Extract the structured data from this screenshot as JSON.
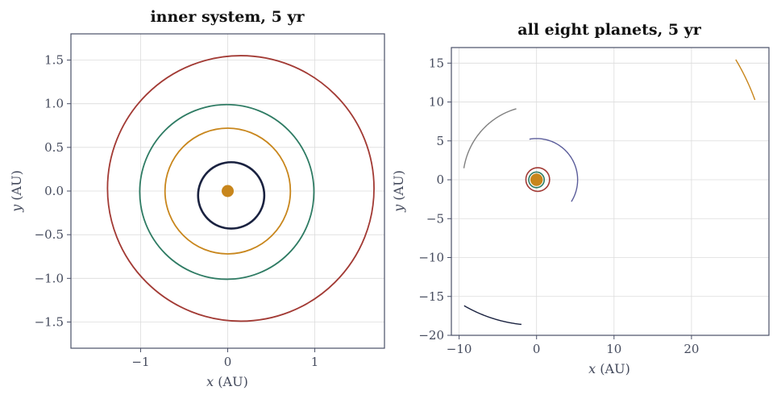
{
  "chart_data": [
    {
      "type": "line",
      "title": "inner system, 5 yr",
      "xlabel_var": "x",
      "xlabel_unit": "(AU)",
      "ylabel_var": "y",
      "ylabel_unit": "(AU)",
      "xlim": [
        -1.8,
        1.8
      ],
      "ylim": [
        -1.8,
        1.8
      ],
      "xticks": [
        -1,
        0,
        1
      ],
      "xtick_labels": [
        "−1",
        "0",
        "1"
      ],
      "yticks": [
        -1.5,
        -1.0,
        -0.5,
        0.0,
        0.5,
        1.0,
        1.5
      ],
      "ytick_labels": [
        "−1.5",
        "−1.0",
        "−0.5",
        "0.0",
        "0.5",
        "1.0",
        "1.5"
      ],
      "grid": true,
      "sun": {
        "x": 0,
        "y": 0,
        "color": "#c8861c"
      },
      "series": [
        {
          "orbit": "ellipse",
          "cx": 0.04,
          "cy": -0.05,
          "rx": 0.38,
          "ry": 0.38,
          "color": "#1a2240",
          "stroke": 2.6
        },
        {
          "orbit": "ellipse",
          "cx": 0.0,
          "cy": 0.0,
          "rx": 0.72,
          "ry": 0.72,
          "color": "#c8861c",
          "stroke": 1.8
        },
        {
          "orbit": "ellipse",
          "cx": -0.01,
          "cy": -0.01,
          "rx": 1.0,
          "ry": 1.0,
          "color": "#2e7b63",
          "stroke": 1.8
        },
        {
          "orbit": "ellipse",
          "cx": 0.15,
          "cy": 0.03,
          "rx": 1.53,
          "ry": 1.52,
          "color": "#a23a34",
          "stroke": 1.8
        }
      ]
    },
    {
      "type": "line",
      "title": "all eight planets, 5 yr",
      "xlabel_var": "x",
      "xlabel_unit": "(AU)",
      "ylabel_var": "y",
      "ylabel_unit": "(AU)",
      "xlim": [
        -11,
        30
      ],
      "ylim": [
        -20,
        17
      ],
      "xticks": [
        -10,
        0,
        10,
        20
      ],
      "xtick_labels": [
        "−10",
        "0",
        "10",
        "20"
      ],
      "yticks": [
        -20,
        -15,
        -10,
        -5,
        0,
        5,
        10,
        15
      ],
      "ytick_labels": [
        "−20",
        "−15",
        "−10",
        "−5",
        "0",
        "5",
        "10",
        "15"
      ],
      "grid": true,
      "sun": {
        "x": 0,
        "y": 0,
        "color": "#c8861c"
      },
      "series": [
        {
          "orbit": "ellipse",
          "cx": 0.04,
          "cy": -0.05,
          "rx": 0.38,
          "ry": 0.38,
          "color": "#1a2240",
          "stroke": 1.6
        },
        {
          "orbit": "ellipse",
          "cx": 0.0,
          "cy": 0.0,
          "rx": 0.72,
          "ry": 0.72,
          "color": "#c8861c",
          "stroke": 1.6
        },
        {
          "orbit": "ellipse",
          "cx": -0.01,
          "cy": -0.01,
          "rx": 1.0,
          "ry": 1.0,
          "color": "#2e7b63",
          "stroke": 1.6
        },
        {
          "orbit": "ellipse",
          "cx": 0.15,
          "cy": 0.03,
          "rx": 1.53,
          "ry": 1.52,
          "color": "#a23a34",
          "stroke": 1.6
        },
        {
          "orbit": "arc",
          "r": 5.3,
          "start_deg": 100,
          "end_deg": -32,
          "color": "#5a5c9a",
          "stroke": 1.4
        },
        {
          "orbit": "arc",
          "r": 9.5,
          "start_deg": 106,
          "end_deg": 171,
          "color": "#808080",
          "stroke": 1.4
        },
        {
          "orbit": "arc",
          "r": 18.7,
          "start_deg": 240,
          "end_deg": 264,
          "color": "#1a2240",
          "stroke": 1.4
        },
        {
          "orbit": "arc",
          "r": 30.0,
          "start_deg": 31,
          "end_deg": 20,
          "color": "#c8861c",
          "stroke": 1.4
        }
      ]
    }
  ]
}
